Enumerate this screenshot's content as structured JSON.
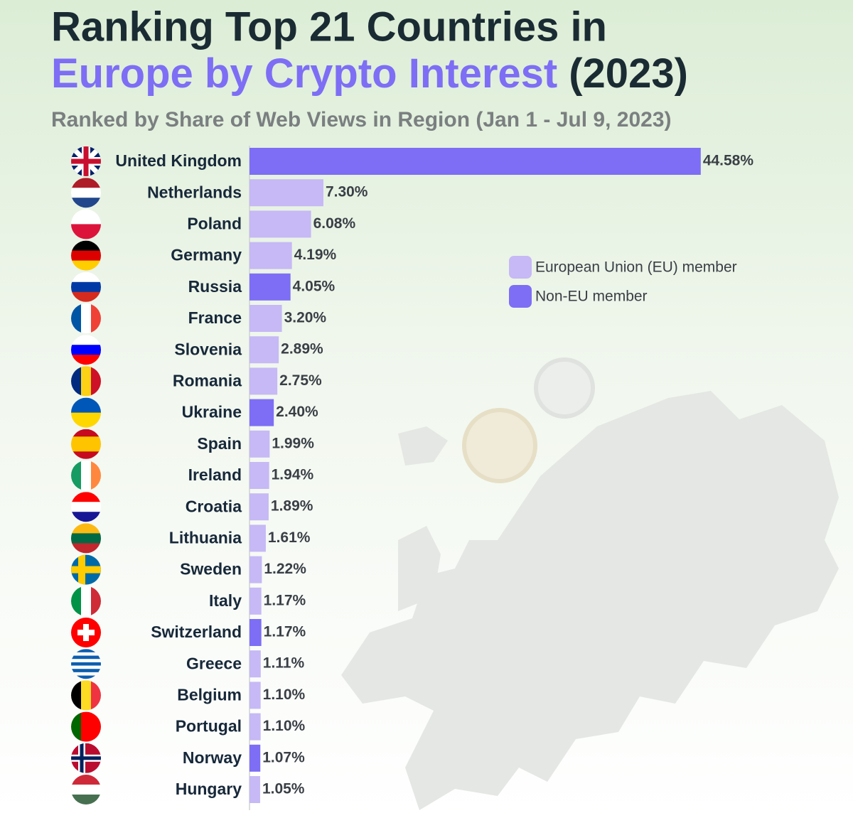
{
  "chart_data": {
    "type": "bar",
    "orientation": "horizontal",
    "title": "Ranking Top 21 Countries in",
    "title_highlight": "Europe by Crypto Interest",
    "title_suffix": "(2023)",
    "subtitle": "Ranked by Share of Web Views in Region (Jan 1 - Jul 9, 2023)",
    "categories": [
      "United Kingdom",
      "Netherlands",
      "Poland",
      "Germany",
      "Russia",
      "France",
      "Slovenia",
      "Romania",
      "Ukraine",
      "Spain",
      "Ireland",
      "Croatia",
      "Lithuania",
      "Sweden",
      "Italy",
      "Switzerland",
      "Greece",
      "Belgium",
      "Portugal",
      "Norway",
      "Hungary"
    ],
    "series": [
      {
        "name": "European Union (EU) member",
        "color": "#c6b9f5",
        "values": [
          null,
          7.3,
          6.08,
          4.19,
          null,
          3.2,
          2.89,
          2.75,
          null,
          1.99,
          1.94,
          1.89,
          1.61,
          1.22,
          1.17,
          null,
          1.11,
          1.1,
          1.1,
          null,
          1.05
        ],
        "value_labels": [
          null,
          "7.30%",
          "6.08%",
          "4.19%",
          null,
          "3.20%",
          "2.89%",
          "2.75%",
          null,
          "1.99%",
          "1.94%",
          "1.89%",
          "1.61%",
          "1.22%",
          "1.17%",
          null,
          "1.11%",
          "1.10%",
          "1.10%",
          null,
          "1.05%"
        ]
      },
      {
        "name": "Non-EU member",
        "color": "#7d6ef5",
        "values": [
          44.58,
          null,
          null,
          null,
          4.05,
          null,
          null,
          null,
          2.4,
          null,
          null,
          null,
          null,
          null,
          null,
          1.17,
          null,
          null,
          null,
          1.07,
          null
        ],
        "value_labels": [
          "44.58%",
          null,
          null,
          null,
          "4.05%",
          null,
          null,
          null,
          "2.40%",
          null,
          null,
          null,
          null,
          null,
          null,
          "1.17%",
          null,
          null,
          null,
          "1.07%",
          null
        ]
      }
    ],
    "xlim": [
      0,
      50
    ],
    "legend_position": "right"
  }
}
